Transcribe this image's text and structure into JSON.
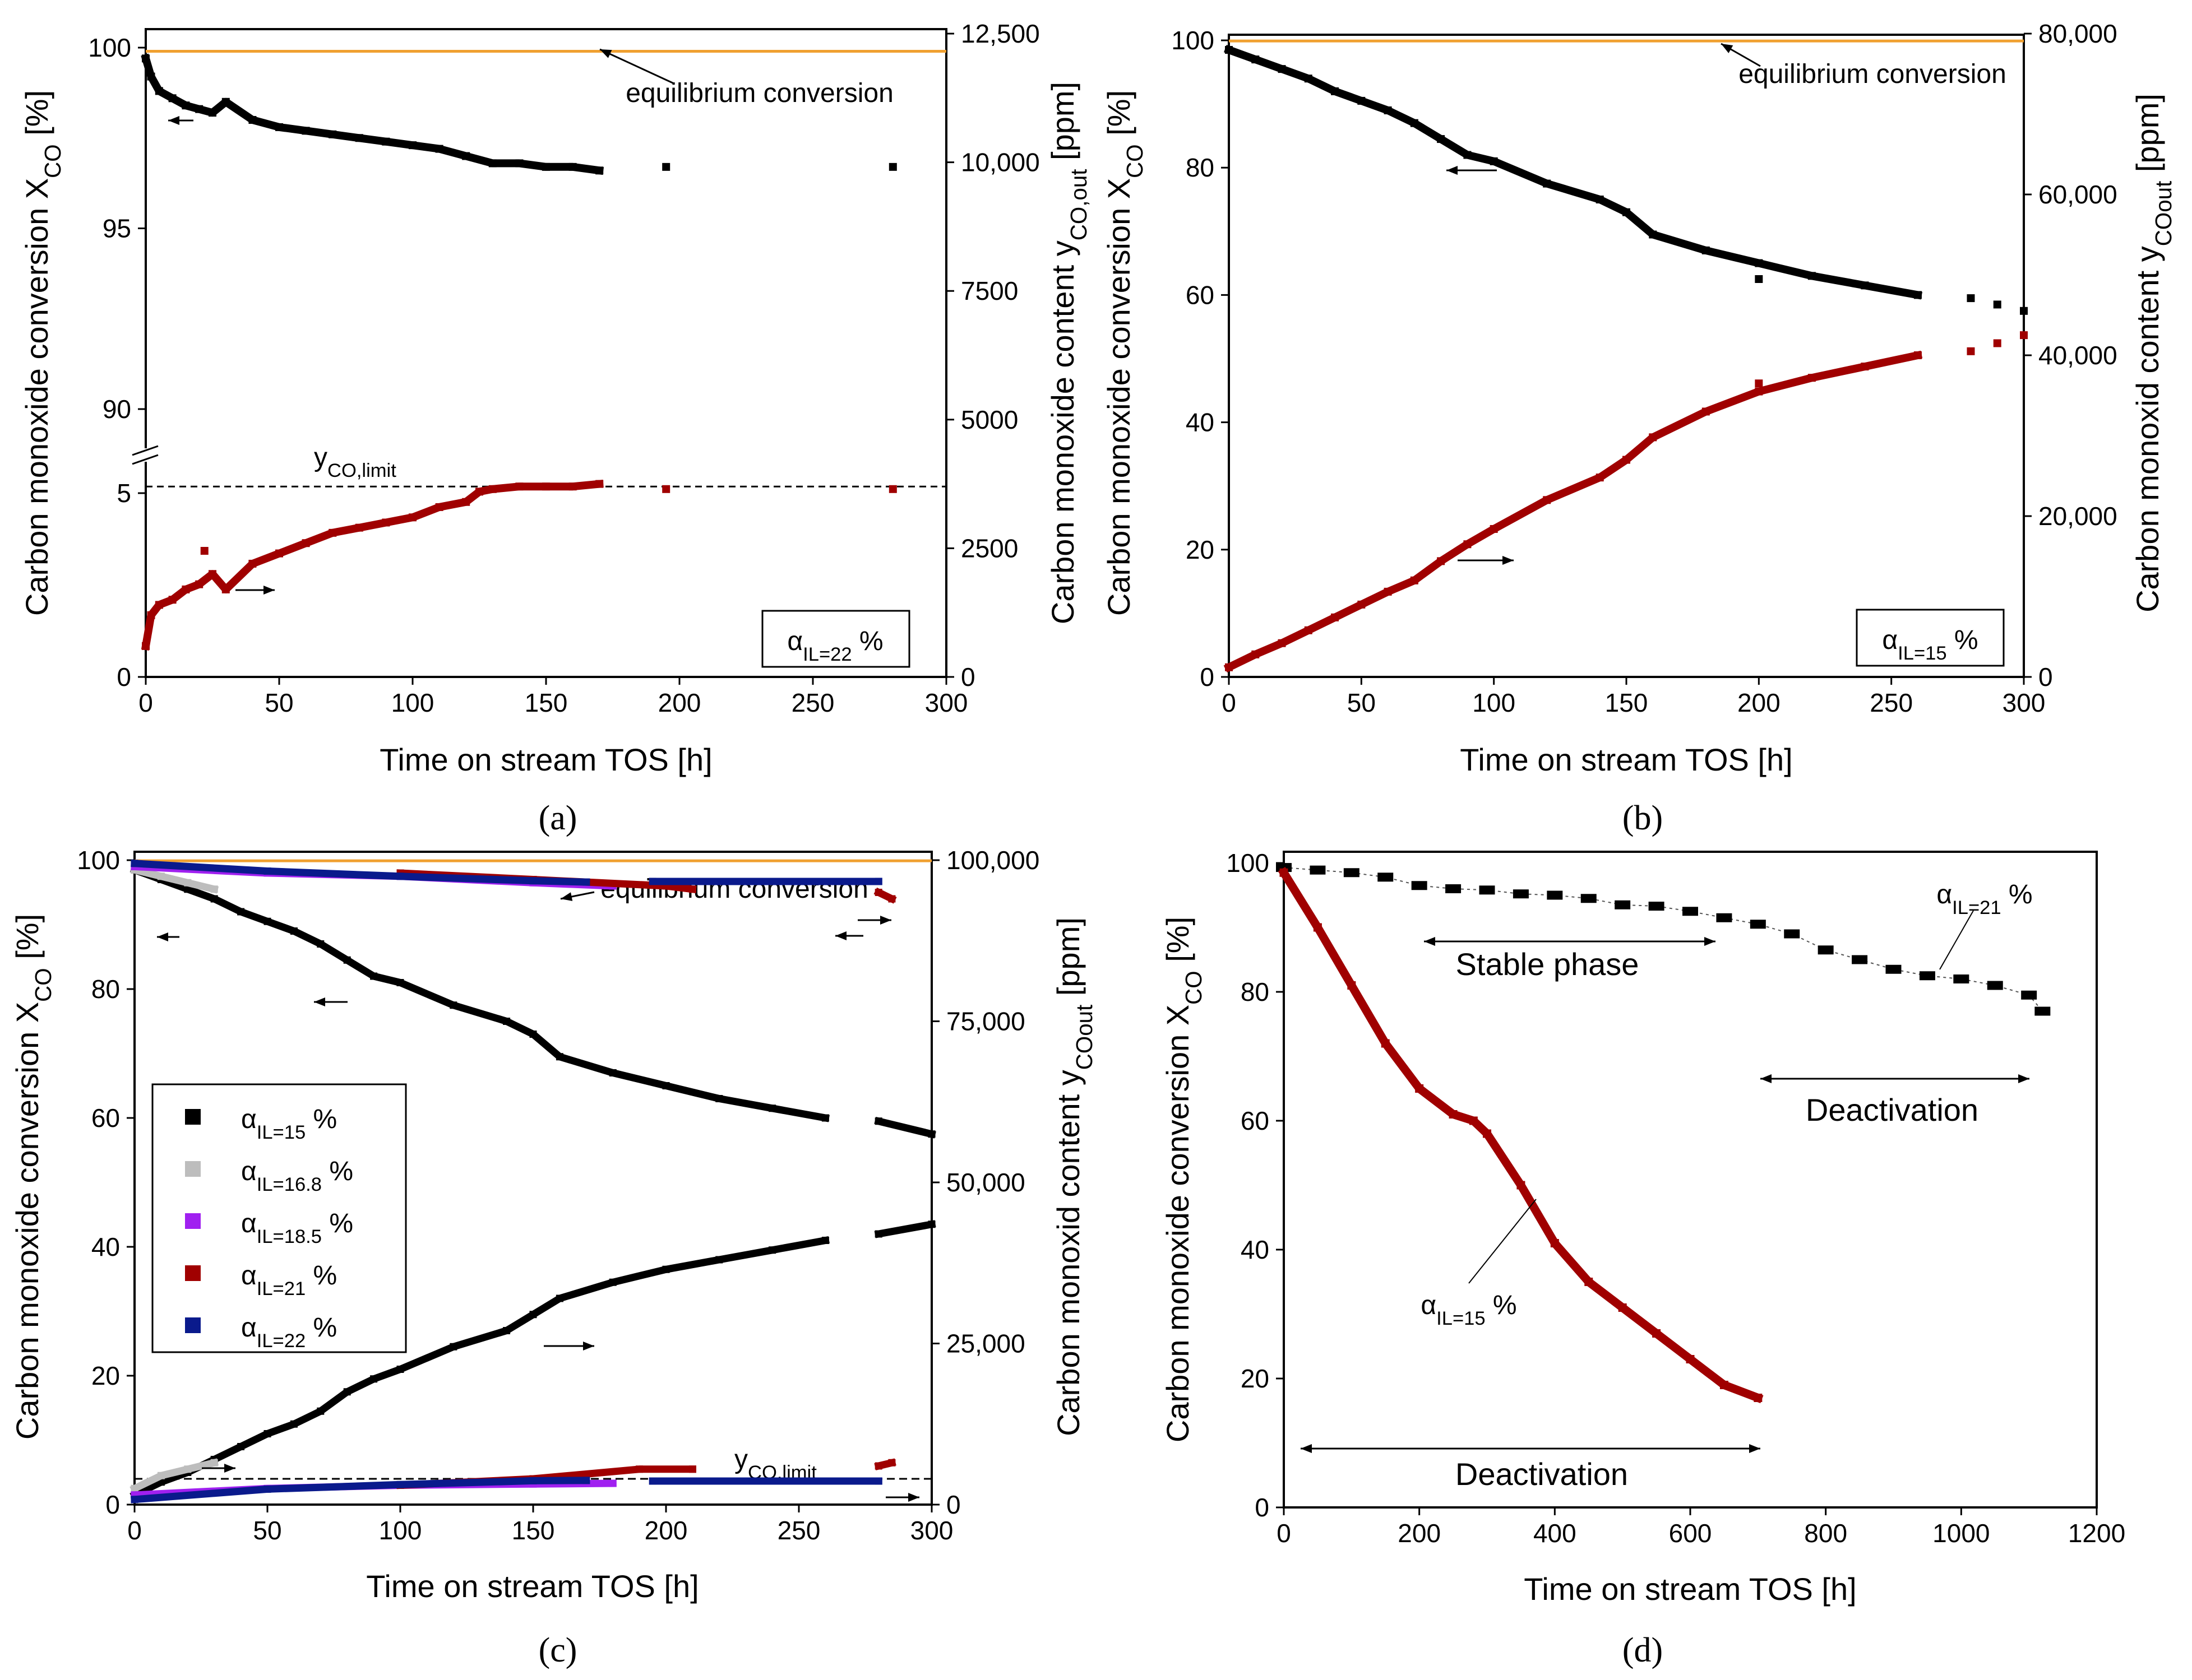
{
  "figure": {
    "panel_labels": [
      "(a)",
      "(b)",
      "(c)",
      "(d)"
    ]
  },
  "colors": {
    "black": "#000000",
    "red": "#a00000",
    "grey": "#bdbdbd",
    "purple": "#a020f0",
    "blue": "#0a1a8c",
    "orange": "#f0a030"
  },
  "chart_data": [
    {
      "id": "a",
      "type": "scatter",
      "title": "",
      "xlabel": "Time on stream TOS  [h]",
      "ylabel": "Carbon monoxide conversion X_CO [%]",
      "y2label": "Carbon monoxide content y_CO,out [ppm]",
      "xlim": [
        0,
        300
      ],
      "xticks": [
        "0",
        "50",
        "100",
        "150",
        "200",
        "250",
        "300"
      ],
      "yticks_upper": [
        "90",
        "95",
        "100"
      ],
      "yticks_lower": [
        "0",
        "5"
      ],
      "y_break": [
        5.5,
        88.5
      ],
      "y2lim": [
        0,
        12500
      ],
      "y2ticks": [
        "0",
        "2500",
        "5000",
        "7500",
        "10,000",
        "12,500"
      ],
      "equilibrium": 99.9,
      "equilibrium_label": "equilibrium conversion",
      "limit_ppm": 3700,
      "limit_label": "y_CO,limit",
      "alpha_label": "α_IL=22 %",
      "series": [
        {
          "name": "X_CO",
          "axis": "left",
          "color": "#000000",
          "x": [
            0,
            2,
            5,
            10,
            15,
            20,
            25,
            30,
            40,
            50,
            60,
            70,
            80,
            90,
            100,
            110,
            120,
            130,
            140,
            150,
            160,
            170
          ],
          "y": [
            99.7,
            99.2,
            98.8,
            98.6,
            98.4,
            98.3,
            98.2,
            98.5,
            98.0,
            97.8,
            97.7,
            97.6,
            97.5,
            97.4,
            97.3,
            97.2,
            97.0,
            96.8,
            96.8,
            96.7,
            96.7,
            96.6
          ],
          "points": [
            [
              195,
              96.7
            ],
            [
              280,
              96.7
            ]
          ]
        },
        {
          "name": "y_CO,out",
          "axis": "right",
          "color": "#a00000",
          "x": [
            0,
            2,
            5,
            10,
            15,
            20,
            25,
            30,
            40,
            50,
            60,
            70,
            80,
            90,
            100,
            110,
            120,
            125,
            130,
            140,
            150,
            160,
            170
          ],
          "y": [
            600,
            1200,
            1400,
            1500,
            1700,
            1800,
            2000,
            1700,
            2200,
            2400,
            2600,
            2800,
            2900,
            3000,
            3100,
            3300,
            3400,
            3600,
            3650,
            3700,
            3700,
            3700,
            3750
          ],
          "points": [
            [
              195,
              3650
            ],
            [
              280,
              3650
            ],
            [
              22,
              2450
            ]
          ]
        }
      ]
    },
    {
      "id": "b",
      "type": "scatter",
      "title": "",
      "xlabel": "Time on stream TOS [h]",
      "ylabel": "Carbon monoxide conversion X_CO [%]",
      "y2label": "Carbon monoxid content y_COout [ppm]",
      "xlim": [
        0,
        300
      ],
      "xticks": [
        "0",
        "50",
        "100",
        "150",
        "200",
        "250",
        "300"
      ],
      "ylim": [
        0,
        100
      ],
      "yticks": [
        "0",
        "20",
        "40",
        "60",
        "80",
        "100"
      ],
      "y2lim": [
        0,
        80000
      ],
      "y2ticks": [
        "0",
        "20,000",
        "40,000",
        "60,000",
        "80,000"
      ],
      "equilibrium": 99.9,
      "equilibrium_label": "equilibrium conversion",
      "alpha_label": "α_IL=15 %",
      "series": [
        {
          "name": "X_CO",
          "axis": "left",
          "color": "#000000",
          "x": [
            0,
            10,
            20,
            30,
            40,
            50,
            60,
            70,
            80,
            90,
            100,
            120,
            140,
            150,
            160,
            180,
            200,
            220,
            240,
            260
          ],
          "y": [
            98.5,
            97,
            95.5,
            94,
            92,
            90.5,
            89,
            87,
            84.5,
            82,
            81,
            77.5,
            75,
            73,
            69.5,
            67,
            65,
            63,
            61.5,
            60
          ],
          "points": [
            [
              280,
              59.5
            ],
            [
              290,
              58.5
            ],
            [
              300,
              57.5
            ],
            [
              200,
              62.5
            ]
          ]
        },
        {
          "name": "y_CO,out",
          "axis": "right",
          "color": "#a00000",
          "x": [
            0,
            10,
            20,
            30,
            40,
            50,
            60,
            70,
            80,
            90,
            100,
            120,
            140,
            150,
            160,
            180,
            200,
            220,
            240,
            260
          ],
          "y": [
            1200,
            2800,
            4200,
            5800,
            7400,
            9000,
            10600,
            12000,
            14400,
            16500,
            18400,
            22000,
            24800,
            27000,
            29800,
            33000,
            35500,
            37200,
            38600,
            40000
          ],
          "points": [
            [
              280,
              40500
            ],
            [
              290,
              41500
            ],
            [
              300,
              42500
            ],
            [
              200,
              36500
            ]
          ]
        }
      ]
    },
    {
      "id": "c",
      "type": "scatter",
      "title": "",
      "xlabel": "Time on stream TOS [h]",
      "ylabel": "Carbon monoxide conversion X_CO [%]",
      "y2label": "Carbon monoxid content y_COout [ppm]",
      "xlim": [
        0,
        300
      ],
      "xticks": [
        "0",
        "50",
        "100",
        "150",
        "200",
        "250",
        "300"
      ],
      "ylim": [
        0,
        100
      ],
      "yticks": [
        "0",
        "20",
        "40",
        "60",
        "80",
        "100"
      ],
      "y2lim": [
        0,
        100000
      ],
      "y2ticks": [
        "0",
        "25,000",
        "50,000",
        "75,000",
        "100,000"
      ],
      "equilibrium": 99.9,
      "equilibrium_label": "equilibrium conversion",
      "limit_ppm": 4000,
      "limit_label": "y_CO,limit",
      "legend": [
        "α_IL=15 %",
        "α_IL=16.8 %",
        "α_IL=18.5 %",
        "α_IL=21 %",
        "α_IL=22 %"
      ],
      "series": [
        {
          "name": "α_IL=15 % X_CO",
          "axis": "left",
          "color": "#000000",
          "x": [
            0,
            10,
            20,
            30,
            40,
            50,
            60,
            70,
            80,
            90,
            100,
            120,
            140,
            150,
            160,
            180,
            200,
            220,
            240,
            260
          ],
          "y": [
            98.5,
            97,
            95.5,
            94,
            92,
            90.5,
            89,
            87,
            84.5,
            82,
            81,
            77.5,
            75,
            73,
            69.5,
            67,
            65,
            63,
            61.5,
            60
          ]
        },
        {
          "name": "α_IL=15 % X_CO late",
          "axis": "left",
          "color": "#000000",
          "x": [
            280,
            300
          ],
          "y": [
            59.5,
            57.5
          ]
        },
        {
          "name": "α_IL=15 % y_CO",
          "axis": "right",
          "color": "#000000",
          "x": [
            0,
            10,
            20,
            30,
            40,
            50,
            60,
            70,
            80,
            90,
            100,
            120,
            140,
            150,
            160,
            180,
            200,
            220,
            240,
            260
          ],
          "y": [
            1500,
            3500,
            5000,
            7000,
            9000,
            11000,
            12500,
            14500,
            17500,
            19500,
            21000,
            24500,
            27000,
            29500,
            32000,
            34500,
            36500,
            38000,
            39500,
            41000
          ]
        },
        {
          "name": "α_IL=15 % y_CO late",
          "axis": "right",
          "color": "#000000",
          "x": [
            280,
            300
          ],
          "y": [
            42000,
            43500
          ]
        },
        {
          "name": "α_IL=16.8 % X_CO",
          "axis": "left",
          "color": "#bdbdbd",
          "x": [
            0,
            10,
            20,
            30
          ],
          "y": [
            98.5,
            97.5,
            96.5,
            95.5
          ]
        },
        {
          "name": "α_IL=16.8 % y_CO",
          "axis": "right",
          "color": "#bdbdbd",
          "x": [
            0,
            10,
            20,
            30
          ],
          "y": [
            2500,
            4500,
            5500,
            6500
          ]
        },
        {
          "name": "α_IL=18.5 % X_CO",
          "axis": "left",
          "color": "#a020f0",
          "x": [
            0,
            50,
            100,
            150,
            180
          ],
          "y": [
            99,
            98,
            97.5,
            96.5,
            96
          ]
        },
        {
          "name": "α_IL=18.5 % y_CO",
          "axis": "right",
          "color": "#a020f0",
          "x": [
            0,
            50,
            100,
            150,
            180
          ],
          "y": [
            1500,
            2500,
            3000,
            3200,
            3300
          ]
        },
        {
          "name": "α_IL=21 % X_CO",
          "axis": "left",
          "color": "#a00000",
          "x": [
            100,
            150,
            200,
            210
          ],
          "y": [
            98,
            97,
            96,
            95.5
          ]
        },
        {
          "name": "α_IL=21 % X_CO late",
          "axis": "left",
          "color": "#a00000",
          "x": [
            280,
            285
          ],
          "y": [
            95,
            94
          ]
        },
        {
          "name": "α_IL=21 % y_CO",
          "axis": "right",
          "color": "#a00000",
          "x": [
            100,
            150,
            190,
            210
          ],
          "y": [
            3000,
            4000,
            5500,
            5500
          ]
        },
        {
          "name": "α_IL=21 % y_CO late",
          "axis": "right",
          "color": "#a00000",
          "x": [
            280,
            285
          ],
          "y": [
            6000,
            6500
          ]
        },
        {
          "name": "α_IL=22 % X_CO",
          "axis": "left",
          "color": "#0a1a8c",
          "x": [
            0,
            50,
            100,
            150,
            170
          ],
          "y": [
            99.5,
            98.3,
            97.5,
            96.8,
            96.6
          ]
        },
        {
          "name": "α_IL=22 % X_CO late",
          "axis": "left",
          "color": "#0a1a8c",
          "x": [
            195,
            280
          ],
          "y": [
            96.7,
            96.7
          ]
        },
        {
          "name": "α_IL=22 % y_CO",
          "axis": "right",
          "color": "#0a1a8c",
          "x": [
            0,
            50,
            100,
            150,
            170
          ],
          "y": [
            800,
            2400,
            3100,
            3700,
            3750
          ]
        },
        {
          "name": "α_IL=22 % y_CO late",
          "axis": "right",
          "color": "#0a1a8c",
          "x": [
            195,
            280
          ],
          "y": [
            3650,
            3650
          ]
        }
      ]
    },
    {
      "id": "d",
      "type": "scatter",
      "title": "",
      "xlabel": "Time on stream TOS [h]",
      "ylabel": "Carbon monoxide conversion X_CO [%]",
      "xlim": [
        0,
        1200
      ],
      "xticks": [
        "0",
        "200",
        "400",
        "600",
        "800",
        "1000",
        "1200"
      ],
      "ylim": [
        0,
        100
      ],
      "yticks": [
        "0",
        "20",
        "40",
        "60",
        "80",
        "100"
      ],
      "annotations": {
        "alpha21": "α_IL=21 %",
        "alpha15": "α_IL=15 %",
        "stable": "Stable phase",
        "deact_top": "Deactivation",
        "deact_bottom": "Deactivation"
      },
      "series": [
        {
          "name": "α_IL=21 %",
          "color": "#000000",
          "x": [
            0,
            50,
            100,
            150,
            200,
            250,
            300,
            350,
            400,
            450,
            500,
            550,
            600,
            650,
            700,
            750,
            800,
            850,
            900,
            950,
            1000,
            1050,
            1100,
            1120
          ],
          "y": [
            99.3,
            98.9,
            98.5,
            97.8,
            96.5,
            96,
            95.8,
            95.2,
            95,
            94.5,
            93.5,
            93.3,
            92.5,
            91.5,
            90.5,
            89,
            86.5,
            85,
            83.5,
            82.5,
            82,
            81,
            79.5,
            77
          ]
        },
        {
          "name": "α_IL=15 %",
          "color": "#a00000",
          "x": [
            0,
            50,
            100,
            150,
            200,
            250,
            280,
            300,
            350,
            400,
            450,
            500,
            550,
            600,
            650,
            700
          ],
          "y": [
            98.5,
            90,
            81,
            72,
            65,
            61,
            60,
            58,
            50,
            41,
            35,
            31,
            27,
            23,
            19,
            17
          ]
        }
      ]
    }
  ]
}
